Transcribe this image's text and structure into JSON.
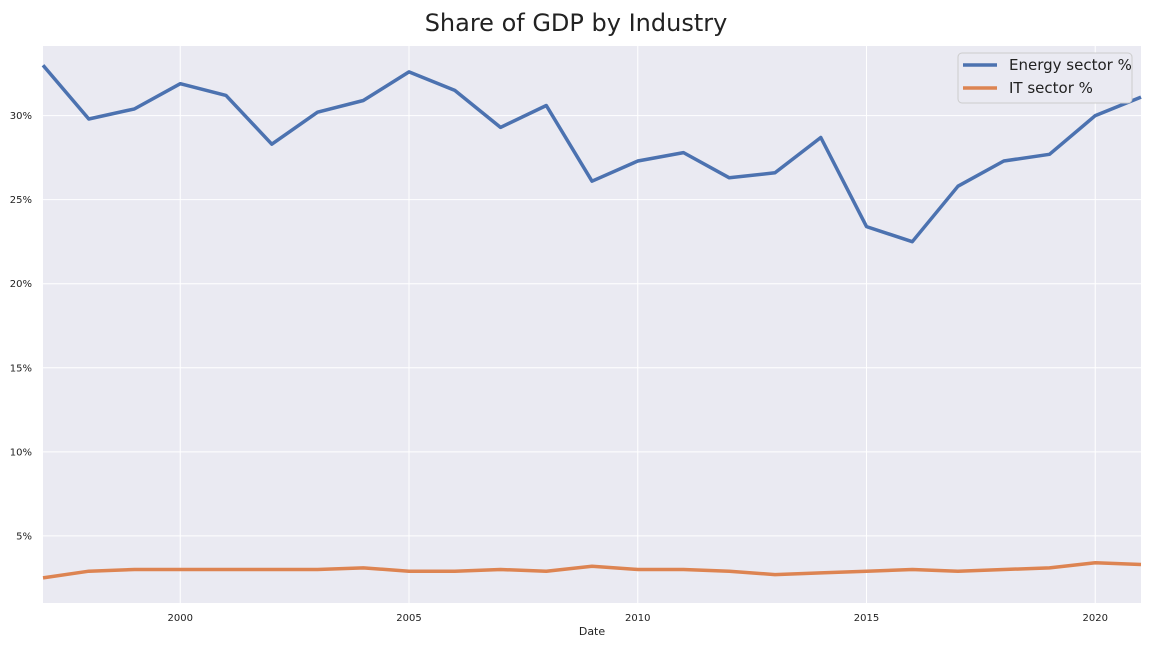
{
  "chart_data": {
    "type": "line",
    "title": "Share of GDP by Industry",
    "xlabel": "Date",
    "ylabel": "",
    "xlim": [
      1997,
      2021
    ],
    "ylim": [
      0.0101,
      0.3414
    ],
    "x_ticks": [
      2000,
      2005,
      2010,
      2015,
      2020
    ],
    "x_tick_labels": [
      "2000",
      "2005",
      "2010",
      "2015",
      "2020"
    ],
    "y_ticks": [
      0.05,
      0.1,
      0.15,
      0.2,
      0.25,
      0.3
    ],
    "y_tick_labels": [
      "5%",
      "10%",
      "15%",
      "20%",
      "25%",
      "30%"
    ],
    "grid": true,
    "legend_position": "top-right",
    "background": "#eaeaf2",
    "x": [
      1997,
      1998,
      1999,
      2000,
      2001,
      2002,
      2003,
      2004,
      2005,
      2006,
      2007,
      2008,
      2009,
      2010,
      2011,
      2012,
      2013,
      2014,
      2015,
      2016,
      2017,
      2018,
      2019,
      2020,
      2021
    ],
    "series": [
      {
        "name": "Energy sector %",
        "color": "#4c72b0",
        "values": [
          0.33,
          0.298,
          0.304,
          0.319,
          0.312,
          0.283,
          0.302,
          0.309,
          0.326,
          0.315,
          0.293,
          0.306,
          0.261,
          0.273,
          0.278,
          0.263,
          0.266,
          0.287,
          0.234,
          0.225,
          0.258,
          0.273,
          0.277,
          0.3,
          0.311
        ]
      },
      {
        "name": "IT sector %",
        "color": "#dd8452",
        "values": [
          0.025,
          0.029,
          0.03,
          0.03,
          0.03,
          0.03,
          0.03,
          0.031,
          0.029,
          0.029,
          0.03,
          0.029,
          0.032,
          0.03,
          0.03,
          0.029,
          0.027,
          0.028,
          0.029,
          0.03,
          0.029,
          0.03,
          0.031,
          0.034,
          0.033
        ]
      }
    ]
  }
}
